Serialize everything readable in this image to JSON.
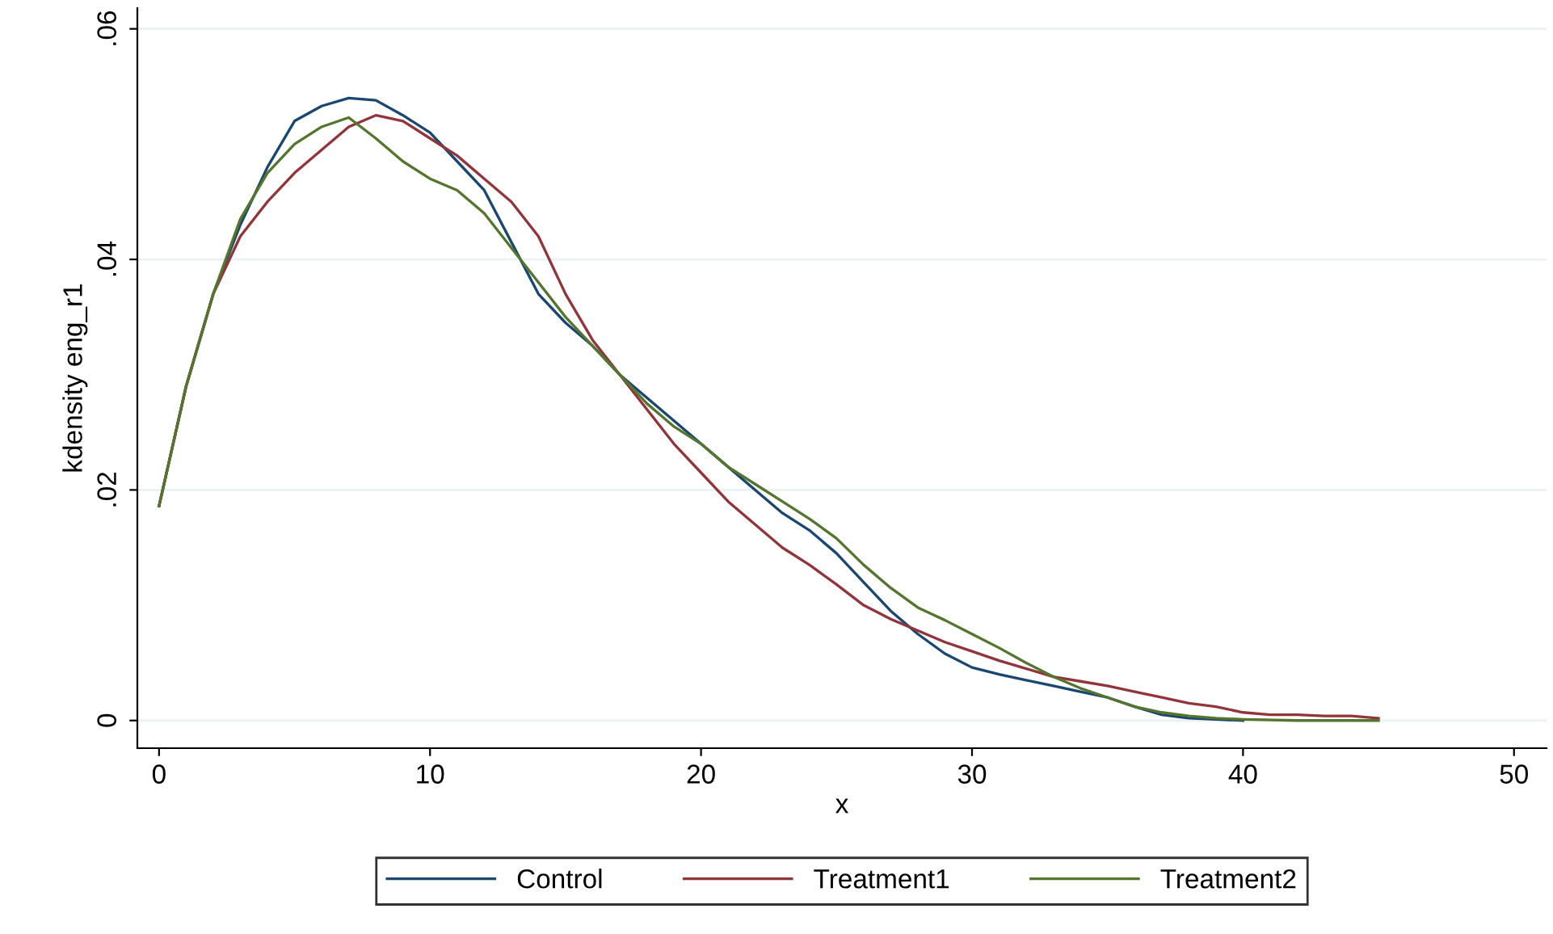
{
  "chart_data": {
    "type": "line",
    "xlabel": "x",
    "ylabel": "kdensity eng_r1",
    "xlim": [
      -0.8,
      51.2
    ],
    "xticks": [
      0,
      10,
      20,
      30,
      40,
      50
    ],
    "ylim": [
      -0.0024,
      0.0618
    ],
    "yticks": [
      {
        "value": 0,
        "label": "0"
      },
      {
        "value": 0.02,
        "label": ".02"
      },
      {
        "value": 0.04,
        "label": ".04"
      },
      {
        "value": 0.06,
        "label": ".06"
      }
    ],
    "grid": "y",
    "legend": "bottom",
    "marker": "none",
    "line_style": "solid",
    "series": [
      {
        "name": "Control",
        "color": "#1a476f",
        "x": [
          0,
          1,
          2,
          3,
          4,
          5,
          6,
          7,
          8,
          9,
          10,
          11,
          12,
          13,
          14,
          15,
          16,
          17,
          18,
          19,
          20,
          21,
          22,
          23,
          24,
          25,
          26,
          27,
          28,
          29,
          30,
          31,
          32,
          33,
          34,
          35,
          36,
          37,
          38,
          40
        ],
        "values": [
          0.0186,
          0.029,
          0.037,
          0.043,
          0.048,
          0.052,
          0.0533,
          0.054,
          0.0538,
          0.0525,
          0.051,
          0.0485,
          0.046,
          0.0415,
          0.037,
          0.0345,
          0.0325,
          0.03,
          0.028,
          0.026,
          0.024,
          0.022,
          0.02,
          0.018,
          0.0165,
          0.0145,
          0.012,
          0.0095,
          0.0075,
          0.0058,
          0.0046,
          0.004,
          0.0035,
          0.003,
          0.0025,
          0.002,
          0.0012,
          0.0005,
          0.0002,
          0.0
        ]
      },
      {
        "name": "Treatment1",
        "color": "#90353b",
        "x": [
          0,
          1,
          2,
          3,
          4,
          5,
          6,
          7,
          8,
          9,
          10,
          11,
          12,
          13,
          14,
          15,
          16,
          17,
          18,
          19,
          20,
          21,
          22,
          23,
          24,
          25,
          26,
          27,
          28,
          29,
          30,
          31,
          32,
          33,
          34,
          35,
          36,
          37,
          38,
          39,
          40,
          41,
          42,
          43,
          44,
          45
        ],
        "values": [
          0.0186,
          0.029,
          0.037,
          0.042,
          0.045,
          0.0475,
          0.0495,
          0.0515,
          0.0525,
          0.052,
          0.0505,
          0.049,
          0.047,
          0.045,
          0.042,
          0.037,
          0.033,
          0.03,
          0.027,
          0.024,
          0.0215,
          0.019,
          0.017,
          0.015,
          0.0135,
          0.0118,
          0.01,
          0.0088,
          0.0078,
          0.0068,
          0.006,
          0.0052,
          0.0045,
          0.0038,
          0.0034,
          0.003,
          0.0025,
          0.002,
          0.0015,
          0.0012,
          0.0007,
          0.0005,
          0.0005,
          0.0004,
          0.0004,
          0.0002
        ]
      },
      {
        "name": "Treatment2",
        "color": "#55752f",
        "x": [
          0,
          1,
          2,
          3,
          4,
          5,
          6,
          7,
          8,
          9,
          10,
          11,
          12,
          13,
          14,
          15,
          16,
          17,
          18,
          19,
          20,
          21,
          22,
          23,
          24,
          25,
          26,
          27,
          28,
          29,
          30,
          31,
          32,
          33,
          34,
          35,
          36,
          37,
          38,
          39,
          40,
          42,
          45
        ],
        "values": [
          0.0186,
          0.029,
          0.037,
          0.0435,
          0.0475,
          0.05,
          0.0515,
          0.0523,
          0.0505,
          0.0485,
          0.047,
          0.046,
          0.044,
          0.041,
          0.038,
          0.035,
          0.0325,
          0.03,
          0.0275,
          0.0255,
          0.024,
          0.022,
          0.0205,
          0.019,
          0.0175,
          0.0158,
          0.0135,
          0.0115,
          0.0098,
          0.0087,
          0.0075,
          0.0063,
          0.005,
          0.0038,
          0.0028,
          0.002,
          0.0012,
          0.0007,
          0.0004,
          0.0002,
          0.0001,
          0.0,
          0.0
        ]
      }
    ]
  }
}
